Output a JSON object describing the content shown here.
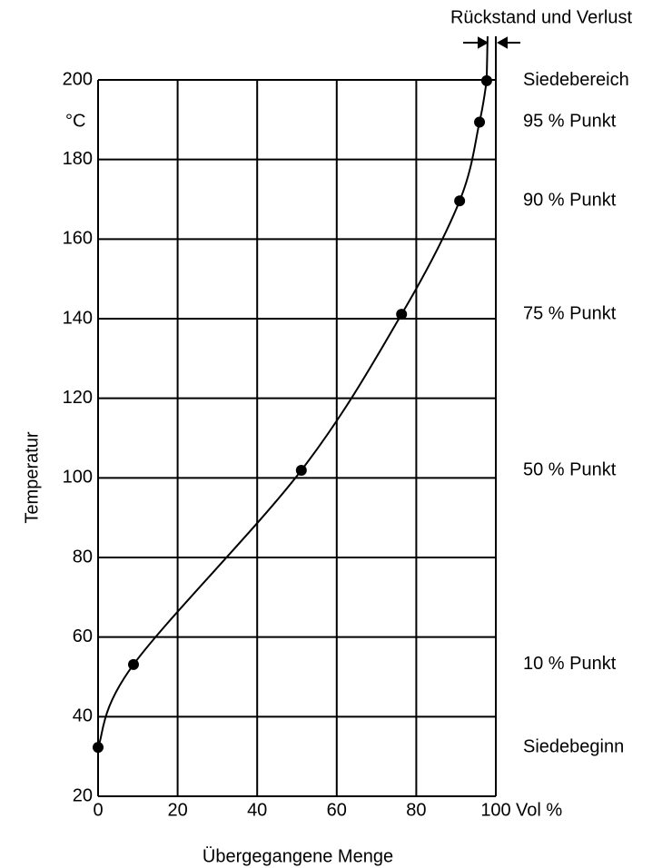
{
  "chart_data": {
    "type": "line",
    "x_label": "Übergegangene Menge",
    "y_label": "Temperatur",
    "x_unit": "Vol %",
    "y_unit": "°C",
    "annotation": "Rückstand und Verlust",
    "x": [
      0,
      8.9,
      51.1,
      76.3,
      90.9,
      95.9,
      97.7
    ],
    "values": [
      32.3,
      53.1,
      101.9,
      141.1,
      169.6,
      189.4,
      199.8
    ],
    "point_labels": [
      "Siedebeginn",
      "10 % Punkt",
      "50 % Punkt",
      "75 % Punkt",
      "90 % Punkt",
      "95 % Punkt",
      "Siedebereich"
    ],
    "color": "#000000",
    "xlim": [
      0,
      100
    ],
    "xticks": [
      0,
      20,
      40,
      60,
      80,
      100
    ],
    "ylim": [
      20,
      200
    ],
    "yticks": [
      20,
      40,
      60,
      80,
      100,
      120,
      140,
      160,
      180,
      200
    ],
    "grid": true
  }
}
